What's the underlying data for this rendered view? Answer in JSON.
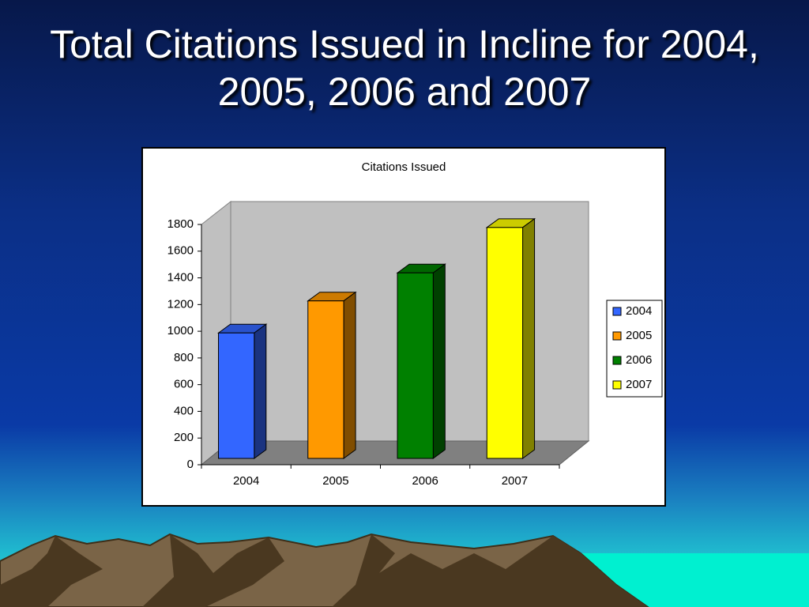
{
  "slide": {
    "title": "Total Citations Issued in Incline for 2004, 2005, 2006 and 2007"
  },
  "chart_data": {
    "type": "bar3d",
    "title": "Citations Issued",
    "categories": [
      "2004",
      "2005",
      "2006",
      "2007"
    ],
    "values": [
      940,
      1180,
      1390,
      1730
    ],
    "colors": [
      "#3366ff",
      "#ff9900",
      "#008000",
      "#ffff00"
    ],
    "ylim": [
      0,
      1800
    ],
    "yticks": [
      0,
      200,
      400,
      600,
      800,
      1000,
      1200,
      1400,
      1600,
      1800
    ],
    "legend": "right"
  }
}
